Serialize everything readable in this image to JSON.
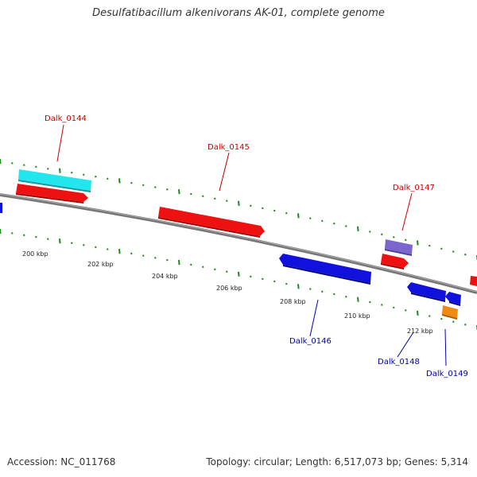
{
  "title": "Desulfatibacillum alkenivorans AK-01, complete genome",
  "footer": {
    "accession": "Accession: NC_011768",
    "summary": "Topology: circular; Length: 6,517,073 bp; Genes: 5,314"
  },
  "colors": {
    "forward_gene": "#ee1111",
    "reverse_gene": "#1111dd",
    "rrna_like": "#22e5ee",
    "hypothetical": "#7a66cc",
    "other": "#f08a10",
    "tick_green": "#1a8a1a",
    "backbone": "#777777",
    "forward_label": "#cc0000",
    "reverse_label": "#0000aa"
  },
  "axis_labels": [
    "200 kbp",
    "202 kbp",
    "204 kbp",
    "206 kbp",
    "208 kbp",
    "210 kbp",
    "212 kbp"
  ],
  "gene_labels": [
    {
      "text": "Dalk_0144",
      "strand": "forward"
    },
    {
      "text": "Dalk_0145",
      "strand": "forward"
    },
    {
      "text": "Dalk_0146",
      "strand": "reverse"
    },
    {
      "text": "Dalk_0147",
      "strand": "forward"
    },
    {
      "text": "Dalk_0148",
      "strand": "reverse"
    },
    {
      "text": "Dalk_0149",
      "strand": "reverse"
    }
  ]
}
